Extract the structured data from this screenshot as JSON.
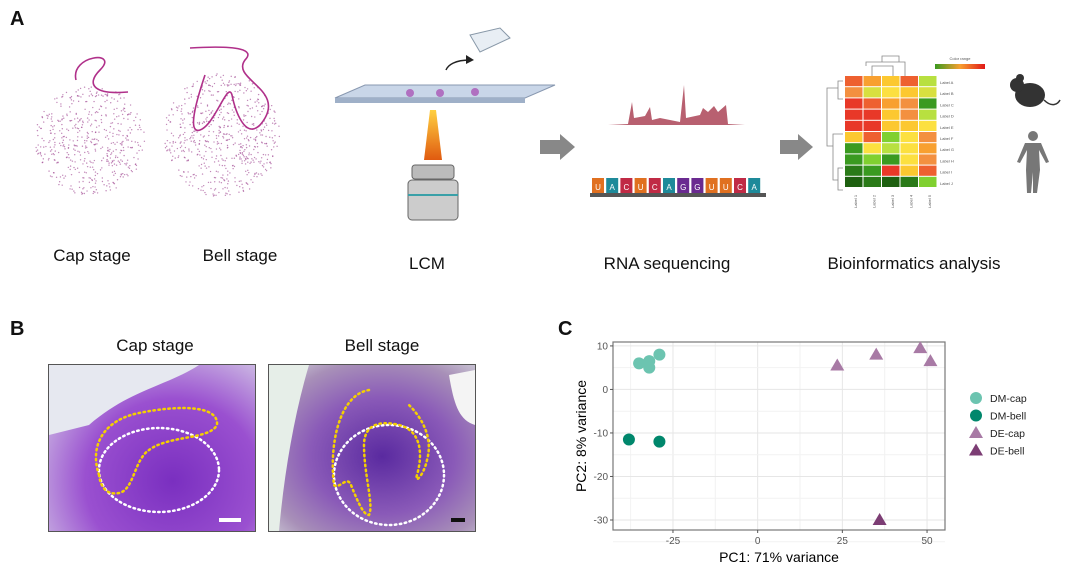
{
  "panel_a": {
    "label": "A",
    "steps": [
      "Cap stage",
      "Bell stage",
      "LCM",
      "RNA sequencing",
      "Bioinformatics analysis"
    ],
    "sequence": [
      "U",
      "A",
      "C",
      "U",
      "C",
      "A",
      "G",
      "G",
      "U",
      "U",
      "C",
      "A"
    ],
    "base_colors": {
      "U": "#e07020",
      "A": "#1e8a9a",
      "C": "#c02a45",
      "G": "#6a2a90"
    },
    "heatmap": {
      "color_range_label": "Color range",
      "row_labels": [
        "Label A",
        "Label B",
        "Label C",
        "Label D",
        "Label E",
        "Label F",
        "Label G",
        "Label H",
        "Label I",
        "Label J"
      ],
      "col_labels": [
        "Label 1",
        "Label 2",
        "Label 3",
        "Label 4",
        "Label 5"
      ],
      "cell_colors": [
        [
          "#ee6030",
          "#f8a030",
          "#fcc830",
          "#ee6030",
          "#b8e040"
        ],
        [
          "#f39040",
          "#d8e040",
          "#fce040",
          "#fcc830",
          "#d8e040"
        ],
        [
          "#e83828",
          "#ee6030",
          "#f8a030",
          "#f39040",
          "#3a9a20"
        ],
        [
          "#e83828",
          "#e83828",
          "#fcc830",
          "#f39040",
          "#b8e040"
        ],
        [
          "#e83828",
          "#e83828",
          "#fcc830",
          "#fcc830",
          "#fce040"
        ],
        [
          "#fcc830",
          "#ee6030",
          "#80d030",
          "#fce040",
          "#f39040"
        ],
        [
          "#3a9a20",
          "#fce040",
          "#b8e040",
          "#fce040",
          "#f8a030"
        ],
        [
          "#3a9a20",
          "#80d030",
          "#3a9a20",
          "#fce040",
          "#f39040"
        ],
        [
          "#2a7a18",
          "#3a9a20",
          "#e83828",
          "#fcc830",
          "#ee6030"
        ],
        [
          "#1e6010",
          "#2a7a18",
          "#1e6010",
          "#2a7a18",
          "#80d030"
        ]
      ]
    },
    "icons": [
      "tissue-section-cap",
      "tissue-section-bell",
      "microscope-slide",
      "tube",
      "objective-lens",
      "chromatogram",
      "rna-strand",
      "heatmap",
      "mouse",
      "human"
    ]
  },
  "panel_b": {
    "label": "B",
    "images": [
      {
        "title": "Cap stage"
      },
      {
        "title": "Bell stage"
      }
    ],
    "outline_colors": {
      "dental_epithelium": "#f5d000",
      "dental_mesenchyme": "#ffffff"
    }
  },
  "chart_data": {
    "type": "scatter",
    "panel_label": "C",
    "xlabel": "PC1: 71% variance",
    "ylabel": "PC2: 8% variance",
    "xlim": [
      -42.7,
      55.3
    ],
    "ylim": [
      -32.3,
      10.9
    ],
    "xticks": [
      -25,
      0,
      25,
      50
    ],
    "yticks": [
      10,
      0,
      -10,
      -20,
      -30
    ],
    "grid": true,
    "legend_position": "right",
    "series": [
      {
        "name": "DM-cap",
        "shape": "circle",
        "color": "#6cc4b0",
        "points": [
          [
            -35,
            6
          ],
          [
            -32,
            6.5
          ],
          [
            -32,
            5
          ],
          [
            -29,
            8
          ]
        ]
      },
      {
        "name": "DM-bell",
        "shape": "circle",
        "color": "#00876c",
        "points": [
          [
            -38,
            -11.5
          ],
          [
            -29,
            -12
          ]
        ]
      },
      {
        "name": "DE-cap",
        "shape": "triangle",
        "color": "#a87aa5",
        "points": [
          [
            23.5,
            5.5
          ],
          [
            35,
            8
          ],
          [
            48,
            9.5
          ],
          [
            51,
            6.5
          ]
        ]
      },
      {
        "name": "DE-bell",
        "shape": "triangle",
        "color": "#7c3d74",
        "points": [
          [
            36,
            -30
          ]
        ]
      }
    ]
  }
}
